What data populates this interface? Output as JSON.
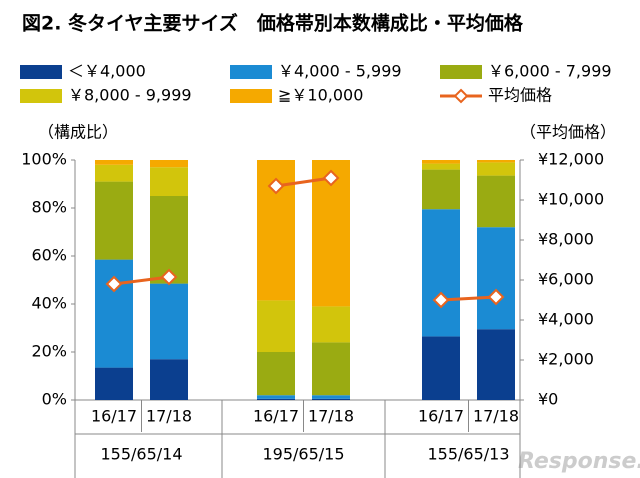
{
  "chart_data": {
    "type": "stacked-bar-line",
    "title": "図2. 冬タイヤ主要サイズ　価格帯別本数構成比・平均価格",
    "y_label": "（構成比）",
    "y2_label": "（平均価格）",
    "watermark": "Response.",
    "categories": [
      "16/17",
      "17/18",
      "16/17",
      "17/18",
      "16/17",
      "17/18"
    ],
    "groups": [
      "155/65/14",
      "195/65/15",
      "155/65/13"
    ],
    "series": [
      {
        "name": "＜￥4,000",
        "color": "#0b3f8f",
        "values": [
          13.5,
          17,
          0.5,
          0.5,
          26.5,
          29.5
        ]
      },
      {
        "name": "￥4,000 - 5,999",
        "color": "#1b8bd3",
        "values": [
          45,
          31.5,
          1.5,
          1.5,
          53,
          42.5
        ]
      },
      {
        "name": "￥6,000 - 7,999",
        "color": "#9aab12",
        "values": [
          32.5,
          36.5,
          18,
          22,
          16.5,
          21.5
        ]
      },
      {
        "name": "￥8,000 - 9,999",
        "color": "#d2c50c",
        "values": [
          7,
          12,
          21.5,
          15,
          2.5,
          5.5
        ]
      },
      {
        "name": "≧￥10,000",
        "color": "#f5a900",
        "values": [
          2,
          3,
          58.5,
          61,
          1.5,
          1
        ]
      },
      {
        "name": "平均価格",
        "color": "#e8641e",
        "axis": "y2",
        "values": [
          5800,
          6150,
          10700,
          11100,
          5000,
          5150
        ]
      }
    ],
    "ylim": [
      0,
      100
    ],
    "yticks": [
      {
        "value": 0,
        "label": "0%"
      },
      {
        "value": 20,
        "label": "20%"
      },
      {
        "value": 40,
        "label": "40%"
      },
      {
        "value": 60,
        "label": "60%"
      },
      {
        "value": 80,
        "label": "80%"
      },
      {
        "value": 100,
        "label": "100%"
      }
    ],
    "y2lim": [
      0,
      12000
    ],
    "y2ticks": [
      {
        "value": 0,
        "label": "¥0"
      },
      {
        "value": 2000,
        "label": "¥2,000"
      },
      {
        "value": 4000,
        "label": "¥4,000"
      },
      {
        "value": 6000,
        "label": "¥6,000"
      },
      {
        "value": 8000,
        "label": "¥8,000"
      },
      {
        "value": 10000,
        "label": "¥10,000"
      },
      {
        "value": 12000,
        "label": "¥12,000"
      }
    ]
  }
}
